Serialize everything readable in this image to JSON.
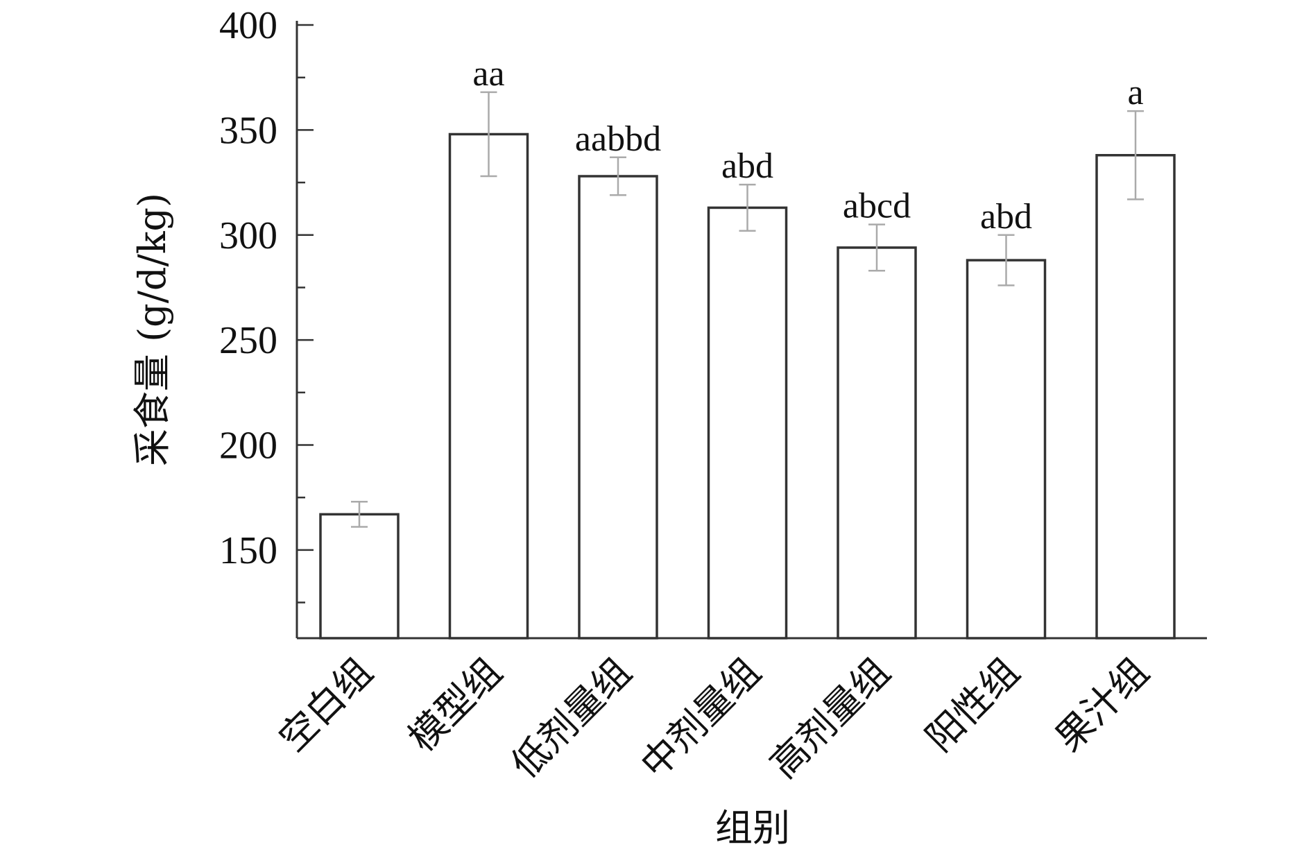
{
  "chart_data": {
    "type": "bar",
    "title": "",
    "xlabel": "组别",
    "ylabel": "采食量 (g/d/kg)",
    "ylim": [
      108,
      402
    ],
    "yticks": [
      150,
      200,
      250,
      300,
      350,
      400
    ],
    "categories": [
      "空白组",
      "模型组",
      "低剂量组",
      "中剂量组",
      "高剂量组",
      "阳性组",
      "果汁组"
    ],
    "values": [
      167,
      348,
      328,
      313,
      294,
      288,
      338
    ],
    "errors": [
      6,
      20,
      9,
      11,
      11,
      12,
      21
    ],
    "annotations": [
      "",
      "aa",
      "aabbd",
      "abd",
      "abcd",
      "abd",
      "a"
    ],
    "grid": false,
    "legend": "none"
  }
}
